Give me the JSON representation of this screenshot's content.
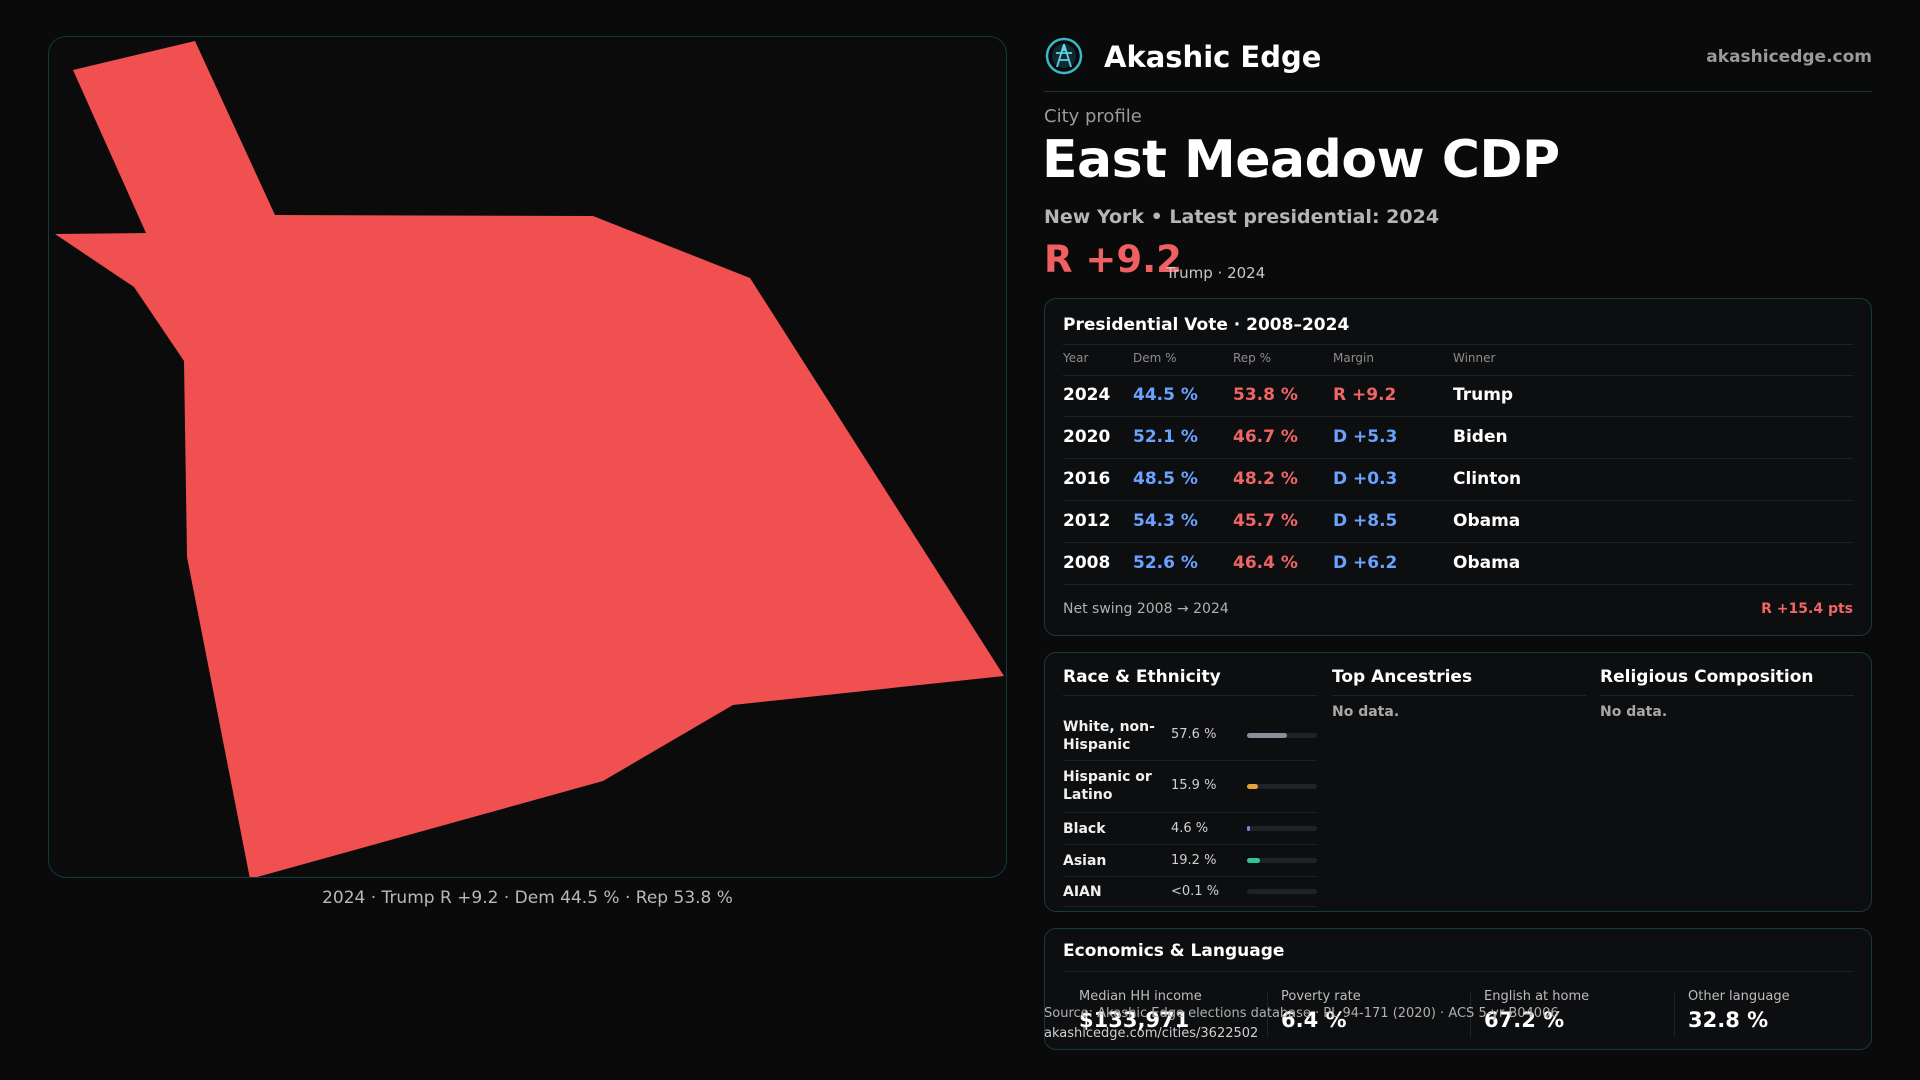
{
  "brand": {
    "name": "Akashic Edge",
    "url": "akashicedge.com",
    "logo_icon": "compass-globe-icon"
  },
  "profile": {
    "kicker": "City profile",
    "title": "East Meadow CDP",
    "state": "New York",
    "latest": "• Latest presidential: 2024",
    "headline_margin": "R +9.2",
    "headline_note": "Trump · 2024"
  },
  "map": {
    "fill_color": "#f05050",
    "caption": "2024 · Trump R +9.2 · Dem 44.5 % · Rep 53.8 %"
  },
  "vote_table": {
    "title": "Presidential Vote · 2008–2024",
    "headers": {
      "year": "Year",
      "dem": "Dem %",
      "rep": "Rep %",
      "margin": "Margin",
      "winner": "Winner"
    },
    "rows": [
      {
        "year": "2024",
        "dem": "44.5 %",
        "rep": "53.8 %",
        "margin": "R +9.2",
        "winner": "Trump",
        "party": "R"
      },
      {
        "year": "2020",
        "dem": "52.1 %",
        "rep": "46.7 %",
        "margin": "D +5.3",
        "winner": "Biden",
        "party": "D"
      },
      {
        "year": "2016",
        "dem": "48.5 %",
        "rep": "48.2 %",
        "margin": "D +0.3",
        "winner": "Clinton",
        "party": "D"
      },
      {
        "year": "2012",
        "dem": "54.3 %",
        "rep": "45.7 %",
        "margin": "D +8.5",
        "winner": "Obama",
        "party": "D"
      },
      {
        "year": "2008",
        "dem": "52.6 %",
        "rep": "46.4 %",
        "margin": "D +6.2",
        "winner": "Obama",
        "party": "D"
      }
    ],
    "swing_label": "Net swing 2008 → 2024",
    "swing_value": "R +15.4 pts"
  },
  "race": {
    "title": "Race & Ethnicity",
    "rows": [
      {
        "name": "White, non-Hispanic",
        "value": "57.6 %",
        "share": 0.576,
        "color": "#8a8f9c"
      },
      {
        "name": "Hispanic or Latino",
        "value": "15.9 %",
        "share": 0.159,
        "color": "#e8a23a"
      },
      {
        "name": "Black",
        "value": "4.6 %",
        "share": 0.046,
        "color": "#8a7cf0"
      },
      {
        "name": "Asian",
        "value": "19.2 %",
        "share": 0.192,
        "color": "#2fc59a"
      },
      {
        "name": "AIAN",
        "value": "<0.1 %",
        "share": 0.0,
        "color": "#8a8f9c"
      }
    ]
  },
  "ancestries": {
    "title": "Top Ancestries",
    "empty": "No data."
  },
  "religion": {
    "title": "Religious Composition",
    "empty": "No data."
  },
  "economics": {
    "title": "Economics & Language",
    "cells": [
      {
        "label": "Median HH income",
        "value": "$133,971"
      },
      {
        "label": "Poverty rate",
        "value": "6.4 %"
      },
      {
        "label": "English at home",
        "value": "67.2 %"
      },
      {
        "label": "Other language",
        "value": "32.8 %"
      }
    ]
  },
  "footer": {
    "source": "Source: Akashic Edge elections database · PL 94-171 (2020) · ACS 5-yr B04006",
    "url": "akashicedge.com/cities/3622502"
  },
  "colors": {
    "dem": "#6aa2ff",
    "rep": "#f06565"
  }
}
